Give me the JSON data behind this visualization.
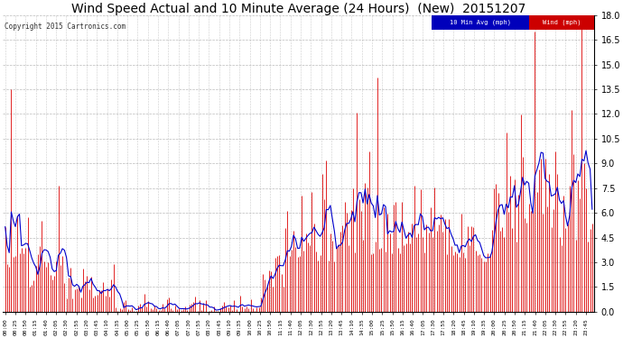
{
  "title": "Wind Speed Actual and 10 Minute Average (24 Hours)  (New)  20151207",
  "copyright": "Copyright 2015 Cartronics.com",
  "legend_avg": "10 Min Avg (mph)",
  "legend_wind": "Wind (mph)",
  "legend_avg_bg": "#0000bb",
  "legend_wind_bg": "#cc0000",
  "yticks": [
    0.0,
    1.5,
    3.0,
    4.5,
    6.0,
    7.5,
    9.0,
    10.5,
    12.0,
    13.5,
    15.0,
    16.5,
    18.0
  ],
  "ymin": 0.0,
  "ymax": 18.0,
  "background_color": "#ffffff",
  "plot_bg": "#ffffff",
  "grid_color": "#aaaaaa",
  "wind_color": "#dd0000",
  "avg_color": "#0000cc",
  "title_fontsize": 10,
  "n_points": 288,
  "tick_step_min": 25
}
